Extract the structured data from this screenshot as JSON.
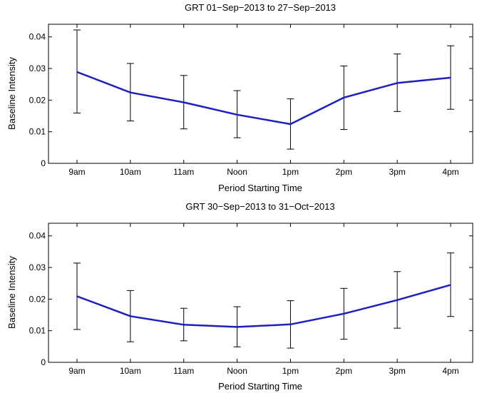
{
  "chart_data": [
    {
      "type": "line",
      "title": "GRT 01−Sep−2013 to 27−Sep−2013",
      "xlabel": "Period Starting Time",
      "ylabel": "Baseline Intensity",
      "categories": [
        "9am",
        "10am",
        "11am",
        "Noon",
        "1pm",
        "2pm",
        "3pm",
        "4pm"
      ],
      "values": [
        0.0289,
        0.0224,
        0.0193,
        0.0154,
        0.0124,
        0.0208,
        0.0254,
        0.0271
      ],
      "error_low": [
        0.0159,
        0.0134,
        0.0109,
        0.0081,
        0.0045,
        0.0107,
        0.0164,
        0.0171
      ],
      "error_high": [
        0.0422,
        0.0316,
        0.0278,
        0.023,
        0.0204,
        0.0308,
        0.0346,
        0.0372
      ],
      "ylim": [
        0,
        0.044
      ],
      "yticks": [
        0,
        0.01,
        0.02,
        0.03,
        0.04
      ],
      "ytick_labels": [
        "0",
        "0.01",
        "0.02",
        "0.03",
        "0.04"
      ],
      "grid": false,
      "line_color": "#1f1fbf"
    },
    {
      "type": "line",
      "title": "GRT 30−Sep−2013 to 31−Oct−2013",
      "xlabel": "Period Starting Time",
      "ylabel": "Baseline Intensity",
      "categories": [
        "9am",
        "10am",
        "11am",
        "Noon",
        "1pm",
        "2pm",
        "3pm",
        "4pm"
      ],
      "values": [
        0.0209,
        0.0146,
        0.0119,
        0.0112,
        0.012,
        0.0154,
        0.0197,
        0.0245
      ],
      "error_low": [
        0.0104,
        0.0065,
        0.0068,
        0.0049,
        0.0045,
        0.0073,
        0.0108,
        0.0145
      ],
      "error_high": [
        0.0314,
        0.0227,
        0.0171,
        0.0176,
        0.0195,
        0.0234,
        0.0287,
        0.0346
      ],
      "ylim": [
        0,
        0.044
      ],
      "yticks": [
        0,
        0.01,
        0.02,
        0.03,
        0.04
      ],
      "ytick_labels": [
        "0",
        "0.01",
        "0.02",
        "0.03",
        "0.04"
      ],
      "grid": false,
      "line_color": "#1f1fbf"
    }
  ]
}
